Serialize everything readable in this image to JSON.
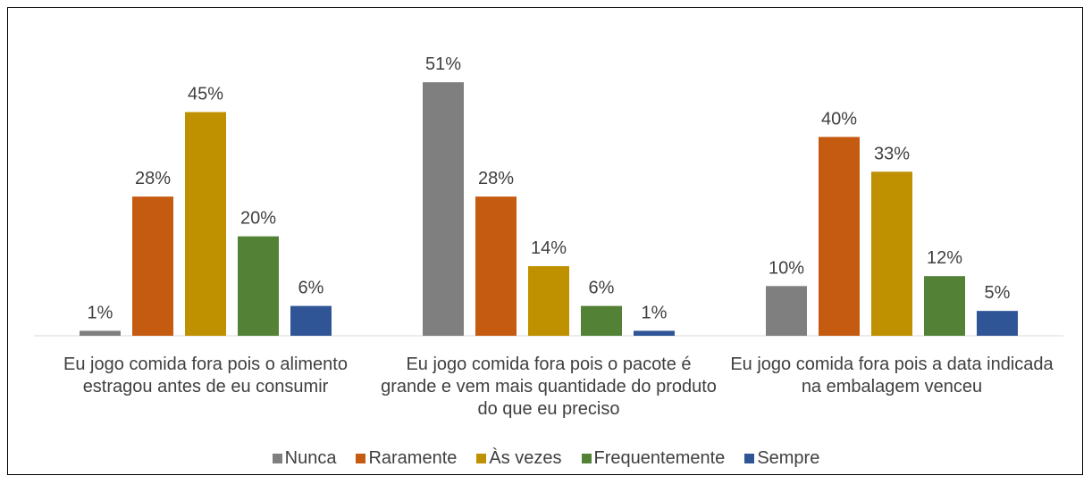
{
  "chart_data": {
    "type": "bar",
    "categories": [
      "Eu jogo comida fora pois o alimento estragou antes de eu consumir",
      "Eu jogo comida fora pois o pacote é grande e vem mais quantidade do produto do que eu preciso",
      "Eu jogo comida fora pois a data indicada na embalagem venceu"
    ],
    "series": [
      {
        "name": "Nunca",
        "color": "#7f7f7f",
        "values": [
          1,
          51,
          10
        ],
        "value_labels": [
          "1%",
          "51%",
          "10%"
        ]
      },
      {
        "name": "Raramente",
        "color": "#c55a11",
        "values": [
          28,
          28,
          40
        ],
        "value_labels": [
          "28%",
          "28%",
          "40%"
        ]
      },
      {
        "name": "Às vezes",
        "color": "#bf9000",
        "values": [
          45,
          14,
          33
        ],
        "value_labels": [
          "45%",
          "14%",
          "33%"
        ]
      },
      {
        "name": "Frequentemente",
        "color": "#538135",
        "values": [
          20,
          6,
          12
        ],
        "value_labels": [
          "20%",
          "6%",
          "12%"
        ]
      },
      {
        "name": "Sempre",
        "color": "#2f5597",
        "values": [
          6,
          1,
          5
        ],
        "value_labels": [
          "6%",
          "1%",
          "5%"
        ]
      }
    ],
    "ylim": [
      0,
      60
    ],
    "legend": "bottom"
  }
}
